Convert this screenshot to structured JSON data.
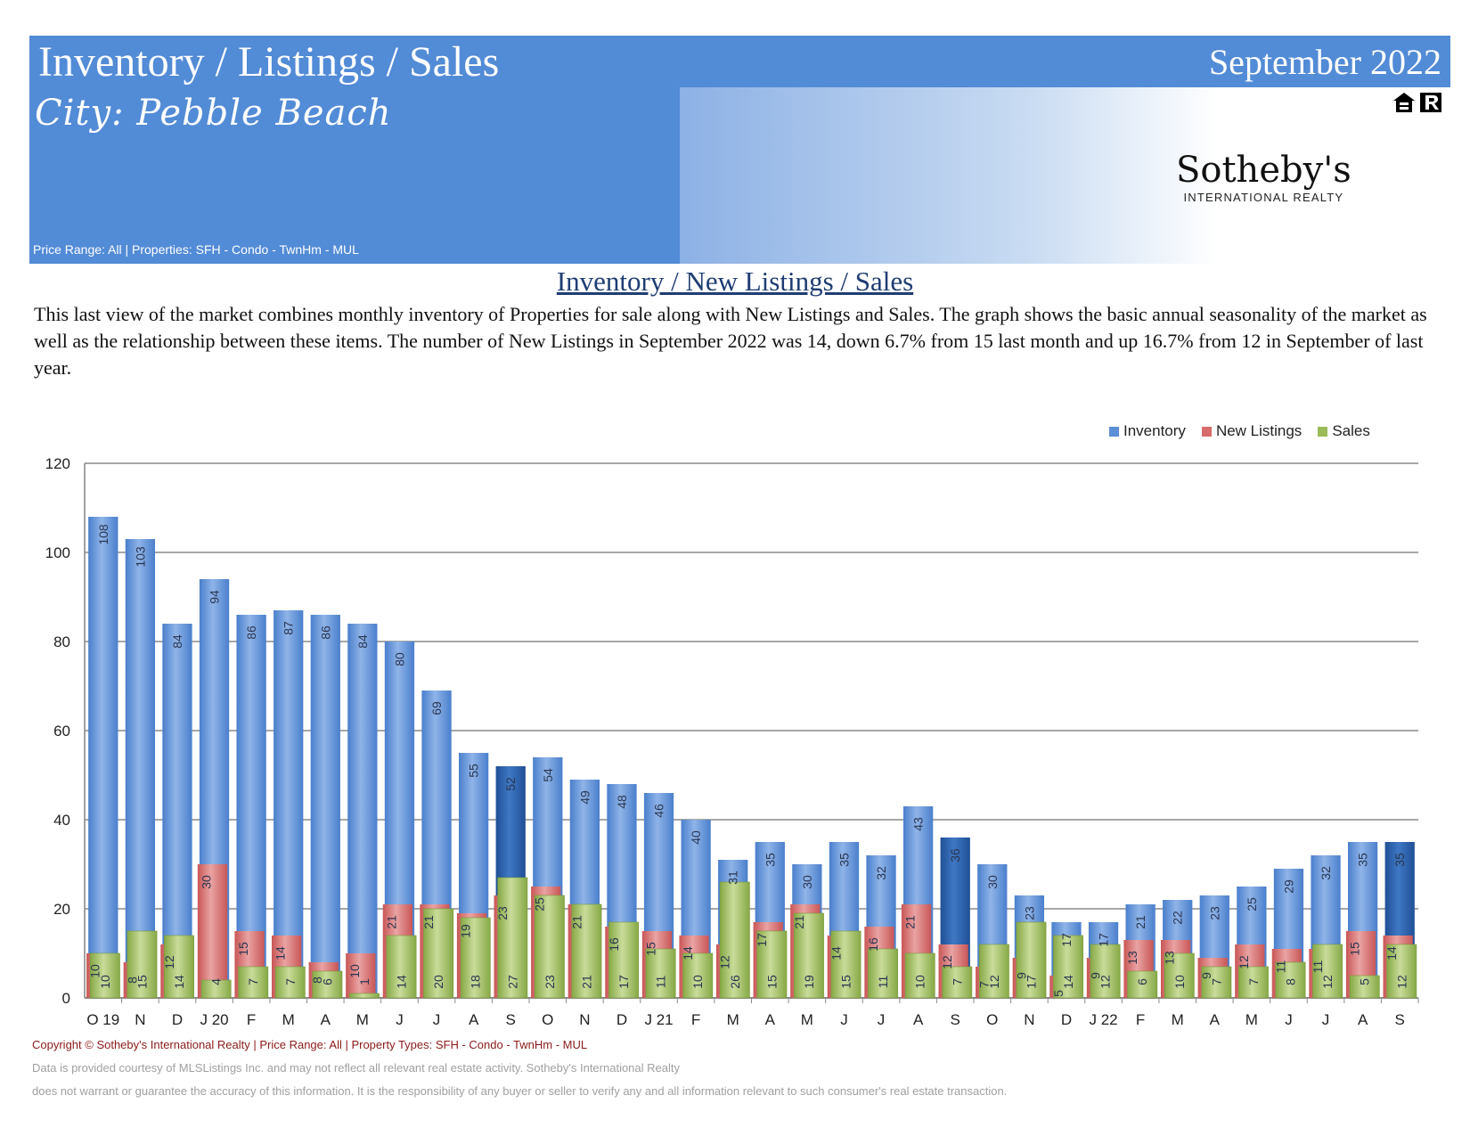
{
  "header": {
    "title": "Inventory / Listings / Sales",
    "date": "September 2022",
    "city": "City:  Pebble Beach",
    "price_line": "Price Range:  All | Properties:  SFH - Condo - TwnHm - MUL",
    "icons": [
      "equal-housing-icon",
      "realtor-icon"
    ]
  },
  "brand": {
    "name": "Sotheby's",
    "subtitle": "INTERNATIONAL REALTY"
  },
  "section_title": "Inventory / New Listings / Sales",
  "description": "This last view of the market combines monthly inventory of Properties for sale along with New Listings and Sales.  The graph shows the basic annual seasonality of the market as well as the relationship between these items.  The number of New Listings in September 2022 was 14, down 6.7% from 15 last month and up 16.7% from 12 in September of last year.",
  "footer": {
    "copyright": "Copyright © Sotheby's International Realty  |  Price Range:  All  |  Property Types:  SFH - Condo - TwnHm - MUL",
    "disclaimer1": "Data is provided courtesy of MLSListings Inc. and may not reflect all relevant real estate activity.  Sotheby's International Realty",
    "disclaimer2": "does not warrant or guarantee the accuracy of this information.  It is the responsibility of any buyer or seller to verify any and all information relevant to such consumer's real estate transaction."
  },
  "colors": {
    "inventory": "#5b8fd6",
    "inventory_highlight": "#2f63ad",
    "new_listings": "#d86b6b",
    "sales": "#9bbb59"
  },
  "chart_data": {
    "type": "bar",
    "categories": [
      "O 19",
      "N",
      "D",
      "J 20",
      "F",
      "M",
      "A",
      "M",
      "J",
      "J",
      "A",
      "S",
      "O",
      "N",
      "D",
      "J 21",
      "F",
      "M",
      "A",
      "M",
      "J",
      "J",
      "A",
      "S",
      "O",
      "N",
      "D",
      "J 22",
      "F",
      "M",
      "A",
      "M",
      "J",
      "J",
      "A",
      "S"
    ],
    "series": [
      {
        "name": "Inventory",
        "values": [
          108,
          103,
          84,
          94,
          86,
          87,
          86,
          84,
          80,
          69,
          55,
          52,
          54,
          49,
          48,
          46,
          40,
          31,
          35,
          30,
          35,
          32,
          43,
          36,
          30,
          23,
          17,
          17,
          21,
          22,
          23,
          25,
          29,
          32,
          35,
          35
        ]
      },
      {
        "name": "New Listings",
        "values": [
          10,
          8,
          12,
          30,
          15,
          14,
          8,
          10,
          21,
          21,
          19,
          23,
          25,
          21,
          16,
          15,
          14,
          12,
          17,
          21,
          14,
          16,
          21,
          12,
          7,
          9,
          5,
          9,
          13,
          13,
          9,
          12,
          11,
          11,
          15,
          14
        ]
      },
      {
        "name": "Sales",
        "values": [
          10,
          15,
          14,
          4,
          7,
          7,
          6,
          1,
          14,
          20,
          18,
          27,
          23,
          21,
          17,
          11,
          10,
          26,
          15,
          19,
          15,
          11,
          10,
          7,
          12,
          17,
          14,
          12,
          6,
          10,
          7,
          7,
          8,
          12,
          5,
          12
        ]
      }
    ],
    "highlighted_categories": [
      11,
      23,
      35
    ],
    "ylim": [
      0,
      120
    ],
    "yticks": [
      0,
      20,
      40,
      60,
      80,
      100,
      120
    ],
    "grid": true,
    "legend_position": "top-right",
    "data_labels": "rotated inside bars"
  }
}
